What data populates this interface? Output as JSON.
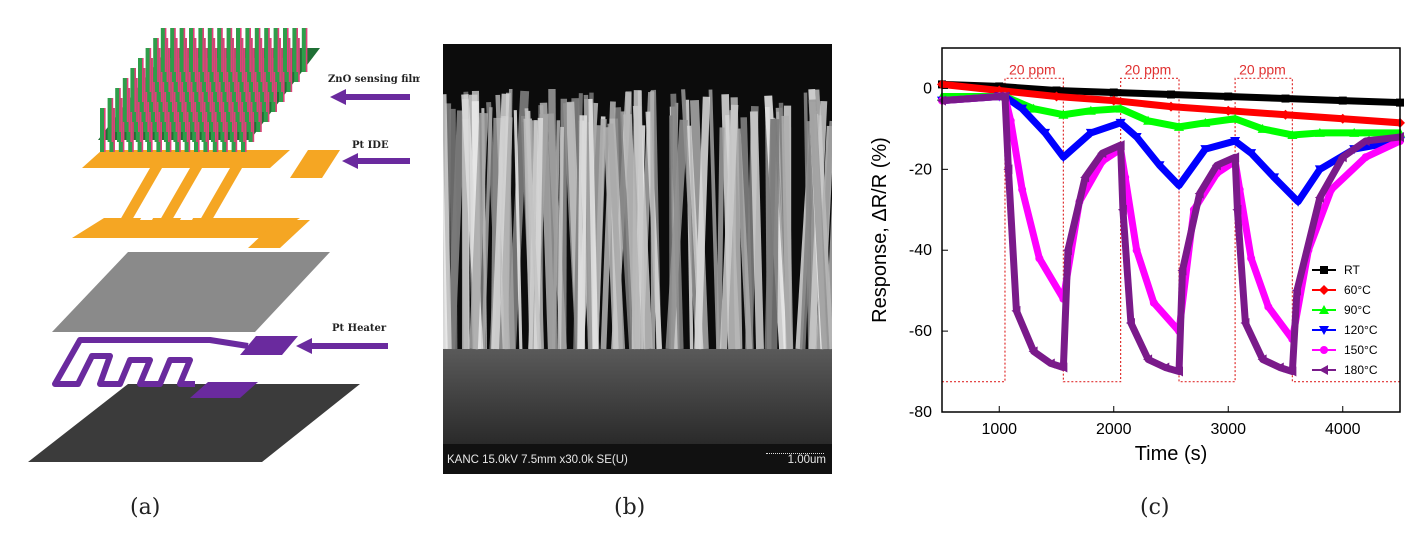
{
  "panel_labels": {
    "a": "(a)",
    "b": "(b)",
    "c": "(c)"
  },
  "panel_a": {
    "layers": {
      "zno": "ZnO sensing film",
      "ide": "Pt IDE",
      "heater": "Pt Heater"
    },
    "colors": {
      "nanorod_green": "#2e9e4a",
      "nanorod_pink": "#e0407a",
      "ide_orange": "#f5a623",
      "heater_purple": "#6a2a9e",
      "arrow_purple": "#6a2a9e",
      "substrate_gray": "#808080",
      "base_dark": "#3a3a3a"
    }
  },
  "panel_b": {
    "sem_info": "KANC 15.0kV 7.5mm x30.0k SE(U)",
    "scale_bar": "1.00um"
  },
  "chart_data": {
    "type": "line",
    "xlabel": "Time (s)",
    "ylabel": "Response, ΔR/R (%)",
    "xlim": [
      500,
      4500
    ],
    "ylim": [
      -80,
      10
    ],
    "xticks": [
      1000,
      2000,
      3000,
      4000
    ],
    "yticks": [
      0,
      -20,
      -40,
      -60,
      -80
    ],
    "grid": false,
    "legend_position": "bottom-right",
    "annotations": [
      "20 ppm",
      "20 ppm",
      "20 ppm"
    ],
    "gas_pulses": [
      [
        1050,
        1560
      ],
      [
        2060,
        2570
      ],
      [
        3060,
        3560
      ]
    ],
    "series": [
      {
        "name": "RT",
        "color": "#000000",
        "marker": "square",
        "x": [
          500,
          1000,
          1500,
          2000,
          2500,
          3000,
          3500,
          4000,
          4500
        ],
        "y": [
          1,
          0.5,
          -0.5,
          -1,
          -1.5,
          -2,
          -2.5,
          -3,
          -3.5
        ]
      },
      {
        "name": "60°C",
        "color": "#ff0000",
        "marker": "diamond",
        "x": [
          500,
          1000,
          1500,
          2000,
          2500,
          3000,
          3500,
          4000,
          4500
        ],
        "y": [
          1,
          -0.5,
          -2,
          -3,
          -4.5,
          -5.5,
          -6.5,
          -7.5,
          -8.5
        ]
      },
      {
        "name": "90°C",
        "color": "#00ff00",
        "marker": "triangle-up",
        "x": [
          500,
          1000,
          1050,
          1300,
          1560,
          1800,
          2060,
          2300,
          2570,
          2800,
          3060,
          3300,
          3560,
          3800,
          4100,
          4500
        ],
        "y": [
          -2,
          -2,
          -2,
          -5,
          -6.5,
          -5.5,
          -5,
          -8,
          -9.5,
          -8.5,
          -7.5,
          -10,
          -11.5,
          -11,
          -11,
          -11
        ]
      },
      {
        "name": "120°C",
        "color": "#0000ff",
        "marker": "triangle-down",
        "x": [
          500,
          1000,
          1050,
          1200,
          1400,
          1560,
          1800,
          2060,
          2200,
          2400,
          2570,
          2800,
          3060,
          3200,
          3400,
          3610,
          3800,
          4100,
          4500
        ],
        "y": [
          -3,
          -2,
          -2,
          -5,
          -11,
          -17,
          -11,
          -8.5,
          -12,
          -19,
          -24,
          -15,
          -13,
          -16,
          -22,
          -28,
          -20,
          -15,
          -13
        ]
      },
      {
        "name": "150°C",
        "color": "#ff00ff",
        "marker": "circle",
        "x": [
          500,
          1000,
          1050,
          1100,
          1200,
          1350,
          1560,
          1700,
          1900,
          2060,
          2100,
          2200,
          2350,
          2570,
          2700,
          2900,
          3060,
          3100,
          3200,
          3350,
          3560,
          3700,
          3900,
          4200,
          4500
        ],
        "y": [
          -3,
          -2,
          -2,
          -8,
          -25,
          -42,
          -52,
          -28,
          -18,
          -15,
          -22,
          -40,
          -53,
          -60,
          -30,
          -21,
          -18,
          -25,
          -42,
          -54,
          -62,
          -40,
          -25,
          -17,
          -13
        ]
      },
      {
        "name": "180°C",
        "color": "#7a1a8a",
        "marker": "triangle-left",
        "x": [
          500,
          1000,
          1050,
          1080,
          1150,
          1300,
          1450,
          1560,
          1600,
          1750,
          1900,
          2060,
          2080,
          2150,
          2300,
          2450,
          2570,
          2600,
          2750,
          2900,
          3060,
          3080,
          3150,
          3300,
          3450,
          3560,
          3600,
          3800,
          4000,
          4200,
          4500
        ],
        "y": [
          -3,
          -2,
          -2,
          -20,
          -55,
          -65,
          -68,
          -69,
          -40,
          -22,
          -16,
          -14,
          -30,
          -58,
          -67,
          -69,
          -70,
          -45,
          -26,
          -19,
          -17,
          -30,
          -58,
          -67,
          -69,
          -70,
          -50,
          -27,
          -17,
          -13,
          -12
        ]
      }
    ]
  }
}
